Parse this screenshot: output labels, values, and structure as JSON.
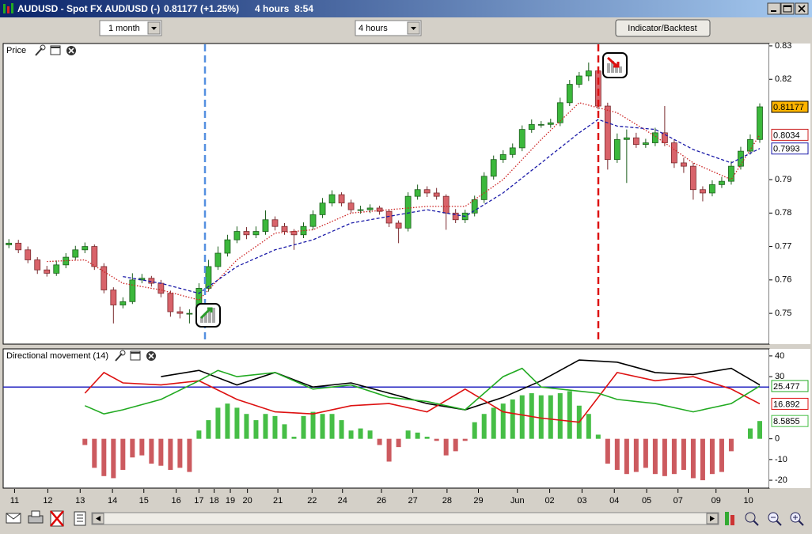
{
  "window": {
    "title": "AUDUSD - Spot FX AUD/USD (-)",
    "quote": "0.81177 (+1.25%)",
    "interval": "4 hours",
    "time": "8:54"
  },
  "toolbar": {
    "period": "1 month",
    "interval": "4 hours",
    "button": "Indicator/Backtest"
  },
  "chart_data": [
    {
      "type": "candlestick",
      "title": "Price",
      "xlim": [
        -0.6,
        80
      ],
      "ylim": [
        0.7408,
        0.8307
      ],
      "yticks": [
        0.83,
        0.82,
        0.79,
        0.78,
        0.77,
        0.76,
        0.75
      ],
      "up_color": "#3cb83c",
      "down_color": "#d8636a",
      "close_tag_color": "#ffb400",
      "open": [
        0.7705,
        0.771,
        0.769,
        0.766,
        0.763,
        0.762,
        0.7645,
        0.7668,
        0.769,
        0.77,
        0.764,
        0.757,
        0.7525,
        0.7535,
        0.76,
        0.7605,
        0.759,
        0.756,
        0.7505,
        0.75,
        0.75,
        0.7575,
        0.764,
        0.768,
        0.772,
        0.7745,
        0.7735,
        0.7745,
        0.778,
        0.776,
        0.7745,
        0.7735,
        0.776,
        0.7795,
        0.783,
        0.7855,
        0.783,
        0.781,
        0.781,
        0.7815,
        0.7805,
        0.777,
        0.7755,
        0.785,
        0.787,
        0.786,
        0.785,
        0.78,
        0.778,
        0.78,
        0.784,
        0.791,
        0.796,
        0.7975,
        0.7995,
        0.805,
        0.8065,
        0.8065,
        0.807,
        0.813,
        0.8185,
        0.821,
        0.8225,
        0.812,
        0.796,
        0.802,
        0.8025,
        0.8005,
        0.801,
        0.804,
        0.801,
        0.795,
        0.794,
        0.787,
        0.786,
        0.7885,
        0.7895,
        0.794,
        0.7985,
        0.802
      ],
      "high": [
        0.7722,
        0.772,
        0.77,
        0.7668,
        0.7642,
        0.7658,
        0.768,
        0.7702,
        0.7712,
        0.7706,
        0.765,
        0.7578,
        0.7548,
        0.762,
        0.7618,
        0.7612,
        0.76,
        0.7568,
        0.752,
        0.7512,
        0.759,
        0.766,
        0.77,
        0.7735,
        0.776,
        0.7758,
        0.776,
        0.7808,
        0.779,
        0.777,
        0.7752,
        0.7772,
        0.7808,
        0.7845,
        0.7868,
        0.7862,
        0.784,
        0.7822,
        0.7826,
        0.7822,
        0.7812,
        0.7778,
        0.7862,
        0.7885,
        0.788,
        0.7875,
        0.7856,
        0.7812,
        0.781,
        0.7852,
        0.7922,
        0.7972,
        0.7988,
        0.8008,
        0.8062,
        0.808,
        0.8075,
        0.8082,
        0.8145,
        0.8198,
        0.8222,
        0.825,
        0.8238,
        0.813,
        0.8038,
        0.805,
        0.804,
        0.8022,
        0.8055,
        0.812,
        0.802,
        0.7965,
        0.795,
        0.788,
        0.7898,
        0.7908,
        0.7955,
        0.7998,
        0.8035,
        0.8128
      ],
      "low": [
        0.7695,
        0.768,
        0.765,
        0.7618,
        0.761,
        0.7612,
        0.7635,
        0.766,
        0.768,
        0.763,
        0.756,
        0.747,
        0.7515,
        0.7528,
        0.759,
        0.758,
        0.7548,
        0.749,
        0.7485,
        0.747,
        0.749,
        0.7565,
        0.763,
        0.767,
        0.771,
        0.7722,
        0.7725,
        0.7735,
        0.7748,
        0.7735,
        0.769,
        0.7725,
        0.775,
        0.7785,
        0.782,
        0.782,
        0.78,
        0.7798,
        0.78,
        0.7795,
        0.7758,
        0.771,
        0.7745,
        0.784,
        0.7848,
        0.784,
        0.775,
        0.777,
        0.777,
        0.779,
        0.783,
        0.79,
        0.795,
        0.7965,
        0.7985,
        0.804,
        0.8055,
        0.8055,
        0.806,
        0.812,
        0.8175,
        0.8195,
        0.811,
        0.793,
        0.795,
        0.789,
        0.7995,
        0.7995,
        0.8,
        0.8,
        0.7935,
        0.792,
        0.784,
        0.7835,
        0.785,
        0.7875,
        0.7885,
        0.793,
        0.7975,
        0.801
      ],
      "close": [
        0.771,
        0.769,
        0.766,
        0.763,
        0.762,
        0.7645,
        0.7668,
        0.769,
        0.77,
        0.764,
        0.757,
        0.7525,
        0.7535,
        0.76,
        0.7605,
        0.759,
        0.756,
        0.7505,
        0.75,
        0.75,
        0.7575,
        0.764,
        0.768,
        0.772,
        0.7745,
        0.7735,
        0.7745,
        0.778,
        0.776,
        0.7745,
        0.7735,
        0.776,
        0.7795,
        0.783,
        0.7855,
        0.783,
        0.781,
        0.781,
        0.7815,
        0.7805,
        0.777,
        0.7755,
        0.785,
        0.787,
        0.786,
        0.785,
        0.78,
        0.778,
        0.78,
        0.784,
        0.791,
        0.796,
        0.7975,
        0.7995,
        0.805,
        0.8065,
        0.8065,
        0.807,
        0.813,
        0.8185,
        0.821,
        0.8225,
        0.812,
        0.796,
        0.802,
        0.8025,
        0.8005,
        0.801,
        0.804,
        0.801,
        0.795,
        0.794,
        0.787,
        0.786,
        0.7885,
        0.7895,
        0.794,
        0.7985,
        0.802,
        0.81177
      ],
      "series": [
        {
          "color": "#cc2222",
          "style": "dotted",
          "tagged": true,
          "x": [
            4,
            8,
            12,
            16,
            20,
            24,
            28,
            32,
            36,
            40,
            44,
            48,
            52,
            56,
            60,
            64,
            68,
            72,
            76,
            79
          ],
          "values": [
            0.7655,
            0.766,
            0.759,
            0.757,
            0.754,
            0.766,
            0.774,
            0.775,
            0.78,
            0.781,
            0.782,
            0.782,
            0.79,
            0.802,
            0.813,
            0.81,
            0.803,
            0.795,
            0.79,
            0.8034
          ]
        },
        {
          "color": "#1a1aa8",
          "style": "dashed",
          "tagged": true,
          "x": [
            12,
            16,
            20,
            24,
            28,
            32,
            36,
            40,
            44,
            48,
            52,
            56,
            60,
            62,
            64,
            68,
            72,
            76,
            79
          ],
          "values": [
            0.761,
            0.759,
            0.756,
            0.764,
            0.769,
            0.772,
            0.777,
            0.779,
            0.781,
            0.779,
            0.786,
            0.795,
            0.804,
            0.808,
            0.806,
            0.805,
            0.799,
            0.795,
            0.7993
          ]
        }
      ]
    },
    {
      "type": "indicator",
      "title": "Directional movement (14)",
      "xlim": [
        -0.6,
        80
      ],
      "ylim": [
        -23.8,
        43.4
      ],
      "yticks": [
        40,
        30,
        0,
        -10,
        -20
      ],
      "xticks": [
        {
          "value": 0.6,
          "label": "11"
        },
        {
          "value": 4.1,
          "label": "12"
        },
        {
          "value": 7.5,
          "label": "13"
        },
        {
          "value": 10.9,
          "label": "14"
        },
        {
          "value": 14.2,
          "label": "15"
        },
        {
          "value": 17.6,
          "label": "16"
        },
        {
          "value": 20.0,
          "label": "17"
        },
        {
          "value": 21.6,
          "label": "18"
        },
        {
          "value": 23.3,
          "label": "19"
        },
        {
          "value": 25.1,
          "label": "20"
        },
        {
          "value": 28.3,
          "label": "21"
        },
        {
          "value": 31.9,
          "label": "22"
        },
        {
          "value": 35.1,
          "label": "24"
        },
        {
          "value": 39.2,
          "label": "26"
        },
        {
          "value": 42.5,
          "label": "27"
        },
        {
          "value": 46.1,
          "label": "28"
        },
        {
          "value": 49.4,
          "label": "29"
        },
        {
          "value": 53.5,
          "label": "Jun"
        },
        {
          "value": 56.9,
          "label": "02"
        },
        {
          "value": 60.3,
          "label": "03"
        },
        {
          "value": 63.7,
          "label": "04"
        },
        {
          "value": 67.1,
          "label": "05"
        },
        {
          "value": 70.4,
          "label": "07"
        },
        {
          "value": 74.4,
          "label": "09"
        },
        {
          "value": 77.8,
          "label": "10"
        }
      ],
      "threshold": 25,
      "threshold_color": "#2020c0",
      "hist": {
        "up_color": "#46be46",
        "down_color": "#cc5a5f",
        "tagged": true,
        "values": [
          null,
          null,
          null,
          null,
          null,
          null,
          null,
          null,
          -3,
          -14,
          -18,
          -19,
          -15,
          -9,
          -8,
          -12,
          -13,
          -15,
          -14,
          -16,
          4,
          9,
          15,
          17,
          15,
          12,
          9,
          12,
          11,
          7,
          1,
          11,
          13,
          12,
          12,
          9,
          4,
          5,
          4,
          -3,
          -11,
          -4,
          4,
          3,
          1,
          -1,
          -8,
          -6,
          -1,
          8,
          12,
          15,
          17,
          19,
          21,
          22,
          21,
          21,
          22,
          23,
          16,
          12,
          2,
          -12,
          -15,
          -17,
          -16,
          -14,
          -17,
          -18,
          -17,
          -15,
          -19,
          -20,
          -17,
          -16,
          -6,
          0,
          5,
          8.5855
        ]
      },
      "series": [
        {
          "color": "#000000",
          "style": "solid",
          "tagged": false,
          "x": [
            16,
            20,
            24,
            28,
            32,
            36,
            40,
            44,
            48,
            52,
            56,
            60,
            64,
            68,
            72,
            76,
            79
          ],
          "values": [
            30,
            33,
            26,
            32,
            25,
            27,
            22,
            17,
            14,
            20,
            28,
            38,
            37,
            32,
            31,
            34,
            26
          ]
        },
        {
          "color": "#dd1111",
          "style": "solid",
          "tagged": true,
          "x": [
            8,
            10,
            12,
            16,
            20,
            24,
            28,
            32,
            36,
            40,
            44,
            48,
            52,
            56,
            60,
            62,
            64,
            68,
            72,
            76,
            79
          ],
          "values": [
            22,
            32,
            27,
            26,
            28,
            19,
            13,
            12,
            16,
            17,
            13,
            24,
            13,
            10,
            8,
            20,
            32,
            28,
            30,
            24,
            16.892
          ]
        },
        {
          "color": "#22aa22",
          "style": "solid",
          "tagged": true,
          "x": [
            8,
            10,
            12,
            16,
            20,
            22,
            24,
            28,
            32,
            36,
            40,
            44,
            48,
            52,
            54,
            56,
            60,
            62,
            64,
            68,
            72,
            76,
            79
          ],
          "values": [
            16,
            12,
            14,
            19,
            28,
            33,
            30,
            32,
            24,
            26,
            20,
            18,
            14,
            30,
            34,
            25,
            23,
            22,
            19,
            17,
            13,
            17,
            25.477
          ]
        }
      ]
    }
  ]
}
